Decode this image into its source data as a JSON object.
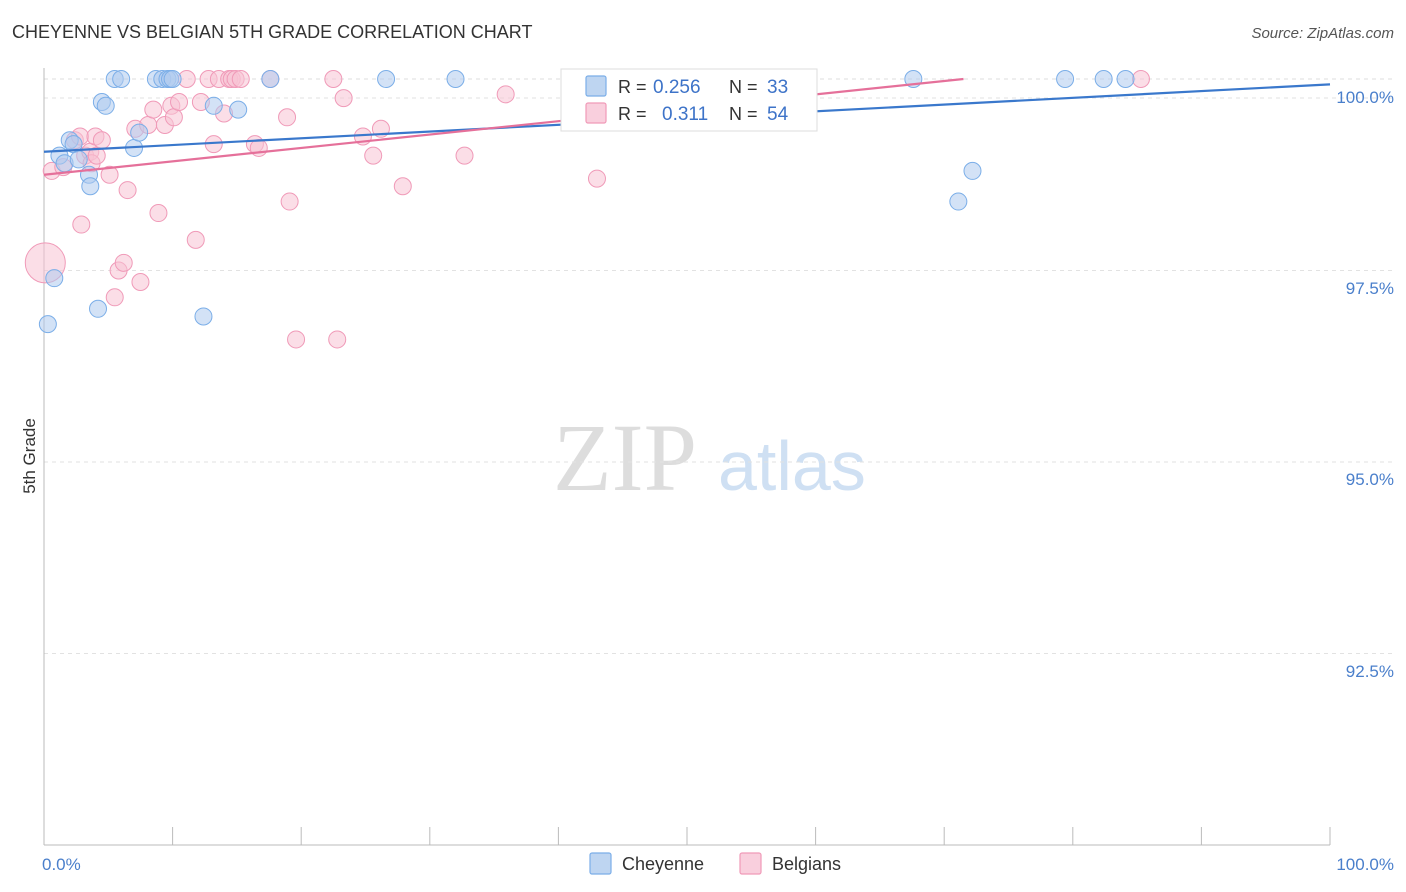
{
  "chart_data": {
    "type": "scatter",
    "title": "CHEYENNE VS BELGIAN 5TH GRADE CORRELATION CHART",
    "source": "Source: ZipAtlas.com",
    "xlabel": "",
    "ylabel": "5th Grade",
    "xlim": [
      0,
      100
    ],
    "ylim": [
      90.5,
      100.4
    ],
    "x_tick_labels": {
      "left": "0.0%",
      "right": "100.0%"
    },
    "y_ticks": [
      {
        "value": 100.0,
        "label": "100.0%"
      },
      {
        "value": 97.5,
        "label": "97.5%"
      },
      {
        "value": 95.0,
        "label": "95.0%"
      },
      {
        "value": 92.5,
        "label": "92.5%"
      }
    ],
    "watermark": {
      "zip": "ZIP",
      "atlas": "atlas"
    },
    "series": [
      {
        "name": "Cheyenne",
        "color": "#7baee8",
        "fill": "#aecbee",
        "line_color": "#3a78cc",
        "R": "0.256",
        "N": "33",
        "trend": {
          "x0": 0,
          "y0": 99.05,
          "x1": 100,
          "y1": 99.93
        },
        "points": [
          {
            "x": 0.3,
            "y": 96.8
          },
          {
            "x": 0.8,
            "y": 97.4
          },
          {
            "x": 1.2,
            "y": 99.0
          },
          {
            "x": 1.6,
            "y": 98.9
          },
          {
            "x": 2.0,
            "y": 99.2
          },
          {
            "x": 2.3,
            "y": 99.15
          },
          {
            "x": 2.7,
            "y": 98.95
          },
          {
            "x": 3.5,
            "y": 98.75
          },
          {
            "x": 3.6,
            "y": 98.6
          },
          {
            "x": 4.2,
            "y": 97.0
          },
          {
            "x": 4.5,
            "y": 99.7
          },
          {
            "x": 4.8,
            "y": 99.65
          },
          {
            "x": 5.5,
            "y": 100.0
          },
          {
            "x": 6.0,
            "y": 100.0
          },
          {
            "x": 7.0,
            "y": 99.1
          },
          {
            "x": 7.4,
            "y": 99.3
          },
          {
            "x": 8.7,
            "y": 100.0
          },
          {
            "x": 9.2,
            "y": 100.0
          },
          {
            "x": 9.6,
            "y": 100.0
          },
          {
            "x": 9.8,
            "y": 100.0
          },
          {
            "x": 10.0,
            "y": 100.0
          },
          {
            "x": 12.4,
            "y": 96.9
          },
          {
            "x": 13.2,
            "y": 99.65
          },
          {
            "x": 15.1,
            "y": 99.6
          },
          {
            "x": 17.6,
            "y": 100.0
          },
          {
            "x": 26.6,
            "y": 100.0
          },
          {
            "x": 32.0,
            "y": 100.0
          },
          {
            "x": 67.6,
            "y": 100.0
          },
          {
            "x": 71.1,
            "y": 98.4
          },
          {
            "x": 72.2,
            "y": 98.8
          },
          {
            "x": 79.4,
            "y": 100.0
          },
          {
            "x": 82.4,
            "y": 100.0
          },
          {
            "x": 84.1,
            "y": 100.0
          }
        ]
      },
      {
        "name": "Belgians",
        "color": "#f09ab8",
        "fill": "#f7c3d4",
        "line_color": "#e5709a",
        "R": "0.311",
        "N": "54",
        "trend": {
          "x0": 0,
          "y0": 98.75,
          "x1": 71.5,
          "y1": 100.0
        },
        "points": [
          {
            "x": 0.1,
            "y": 97.6
          },
          {
            "x": 0.6,
            "y": 98.8
          },
          {
            "x": 1.5,
            "y": 98.85
          },
          {
            "x": 2.4,
            "y": 99.2
          },
          {
            "x": 2.8,
            "y": 99.25
          },
          {
            "x": 2.9,
            "y": 98.1
          },
          {
            "x": 3.2,
            "y": 99.0
          },
          {
            "x": 3.6,
            "y": 99.05
          },
          {
            "x": 3.7,
            "y": 98.9
          },
          {
            "x": 4.0,
            "y": 99.25
          },
          {
            "x": 4.1,
            "y": 99.0
          },
          {
            "x": 4.5,
            "y": 99.2
          },
          {
            "x": 5.1,
            "y": 98.75
          },
          {
            "x": 5.5,
            "y": 97.15
          },
          {
            "x": 5.8,
            "y": 97.5
          },
          {
            "x": 6.2,
            "y": 97.6
          },
          {
            "x": 6.5,
            "y": 98.55
          },
          {
            "x": 7.1,
            "y": 99.35
          },
          {
            "x": 7.5,
            "y": 97.35
          },
          {
            "x": 8.1,
            "y": 99.4
          },
          {
            "x": 8.5,
            "y": 99.6
          },
          {
            "x": 8.9,
            "y": 98.25
          },
          {
            "x": 9.4,
            "y": 99.4
          },
          {
            "x": 9.9,
            "y": 99.65
          },
          {
            "x": 10.1,
            "y": 99.5
          },
          {
            "x": 10.5,
            "y": 99.7
          },
          {
            "x": 11.1,
            "y": 100.0
          },
          {
            "x": 11.8,
            "y": 97.9
          },
          {
            "x": 12.2,
            "y": 99.7
          },
          {
            "x": 12.8,
            "y": 100.0
          },
          {
            "x": 13.2,
            "y": 99.15
          },
          {
            "x": 13.6,
            "y": 100.0
          },
          {
            "x": 14.0,
            "y": 99.55
          },
          {
            "x": 14.4,
            "y": 100.0
          },
          {
            "x": 14.6,
            "y": 100.0
          },
          {
            "x": 14.9,
            "y": 100.0
          },
          {
            "x": 15.3,
            "y": 100.0
          },
          {
            "x": 16.4,
            "y": 99.15
          },
          {
            "x": 16.7,
            "y": 99.1
          },
          {
            "x": 17.6,
            "y": 100.0
          },
          {
            "x": 18.9,
            "y": 99.5
          },
          {
            "x": 19.1,
            "y": 98.4
          },
          {
            "x": 19.6,
            "y": 96.6
          },
          {
            "x": 22.5,
            "y": 100.0
          },
          {
            "x": 22.8,
            "y": 96.6
          },
          {
            "x": 23.3,
            "y": 99.75
          },
          {
            "x": 24.8,
            "y": 99.25
          },
          {
            "x": 25.6,
            "y": 99.0
          },
          {
            "x": 26.2,
            "y": 99.35
          },
          {
            "x": 27.9,
            "y": 98.6
          },
          {
            "x": 32.7,
            "y": 99.0
          },
          {
            "x": 35.9,
            "y": 99.8
          },
          {
            "x": 43.0,
            "y": 98.7
          },
          {
            "x": 85.3,
            "y": 100.0
          }
        ]
      }
    ]
  }
}
